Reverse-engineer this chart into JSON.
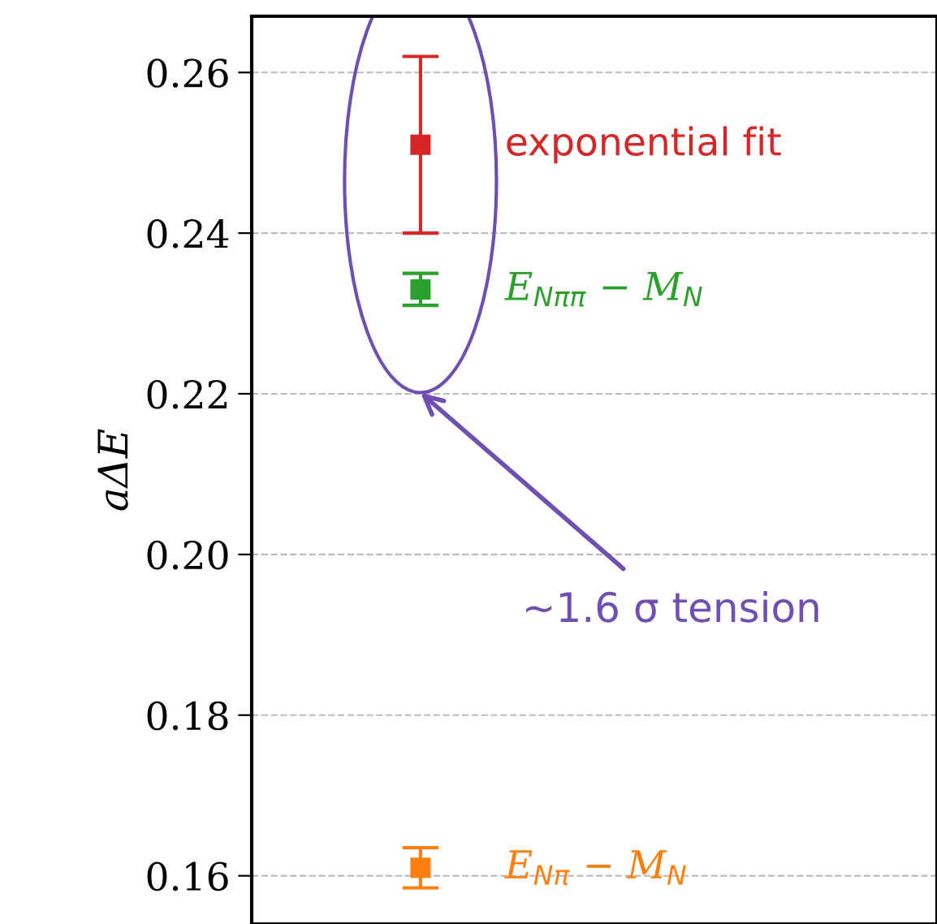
{
  "chart_data": {
    "type": "scatter",
    "ylabel": "aΔE",
    "categories": [
      null
    ],
    "series": [
      {
        "name": "exponential fit",
        "color": "#d62728",
        "values": [
          0.251
        ],
        "errors": [
          [
            0.24,
            0.262
          ]
        ]
      },
      {
        "name": "E$_{Nππ}$ − M$_{N}$",
        "color": "#2ca02c",
        "values": [
          0.233
        ],
        "errors": [
          [
            0.231,
            0.235
          ]
        ]
      },
      {
        "name": "E$_{Nπ}$ − M$_{N}$",
        "color": "#ff7f0e",
        "values": [
          0.161
        ],
        "errors": [
          [
            0.1585,
            0.1635
          ]
        ]
      }
    ],
    "annotations": [
      "∼1.6 σ tension"
    ],
    "ylim": [
      0.154,
      0.267
    ],
    "yticks": [
      {
        "value": 0.16,
        "label": "0.16"
      },
      {
        "value": 0.18,
        "label": "0.18"
      },
      {
        "value": 0.2,
        "label": "0.20"
      },
      {
        "value": 0.22,
        "label": "0.22"
      },
      {
        "value": 0.24,
        "label": "0.24"
      },
      {
        "value": 0.26,
        "label": "0.26"
      }
    ],
    "tick_labels": "y",
    "grid": "y",
    "marker": "square",
    "legend": false
  }
}
